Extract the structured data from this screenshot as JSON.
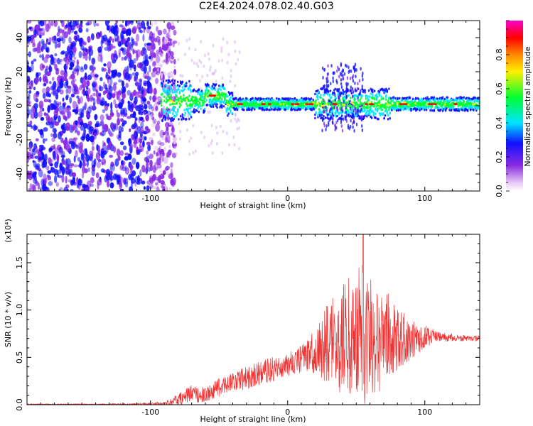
{
  "title": "C2E4.2024.078.02.40.G03",
  "chart_data": [
    {
      "type": "heatmap",
      "xlabel": "Height of straight line (km)",
      "ylabel": "Frequency (Hz)",
      "xlim": [
        -190,
        140
      ],
      "ylim": [
        -50,
        50
      ],
      "xticks": [
        -100,
        0,
        100
      ],
      "yticks": [
        -40,
        -20,
        0,
        20,
        40
      ],
      "colorbar": {
        "label": "Normalized spectral amplitude",
        "range": [
          0,
          1
        ],
        "ticks": [
          0.0,
          0.2,
          0.4,
          0.6,
          0.8
        ],
        "colormap": "rainbow (white-violet-blue-cyan-green-yellow-orange-red-magenta)"
      },
      "features": {
        "noise_region_x": [
          -190,
          -90
        ],
        "signal_band_center_hz": 1,
        "signal_band_start_x": -90,
        "red_peaks_x": [
          -55,
          -35,
          -15,
          5,
          15,
          35,
          60,
          85,
          105,
          125
        ]
      }
    },
    {
      "type": "line",
      "color": "#ee3333",
      "xlabel": "Height of straight line (km)",
      "ylabel": "SNR (10 * v/v)",
      "y_multiplier": "(x10⁴)",
      "xlim": [
        -190,
        140
      ],
      "ylim": [
        0,
        18000
      ],
      "xticks": [
        -100,
        0,
        100
      ],
      "yticks": [
        0,
        5000,
        10000,
        15000
      ],
      "ytick_labels": [
        "0.0",
        "0.5",
        "1.0",
        "1.5"
      ],
      "x": [
        -190,
        -150,
        -110,
        -90,
        -80,
        -70,
        -60,
        -50,
        -40,
        -30,
        -20,
        -10,
        0,
        10,
        20,
        30,
        40,
        50,
        55,
        60,
        70,
        80,
        90,
        100,
        110,
        120,
        130,
        140
      ],
      "y_mean": [
        0,
        0,
        0,
        100,
        500,
        1200,
        1000,
        1800,
        2500,
        2800,
        3400,
        3800,
        4200,
        4800,
        5500,
        6500,
        7000,
        7200,
        7500,
        7300,
        7200,
        7000,
        6800,
        7200,
        7200,
        7100,
        7000,
        7000
      ],
      "y_amplitude": [
        100,
        100,
        150,
        200,
        600,
        900,
        800,
        1000,
        1100,
        1200,
        1300,
        1300,
        1200,
        1500,
        2500,
        4500,
        6000,
        7000,
        8000,
        7000,
        5500,
        3500,
        2200,
        1200,
        500,
        400,
        300,
        300
      ],
      "peak": {
        "x": 55,
        "y": 18000
      }
    }
  ]
}
